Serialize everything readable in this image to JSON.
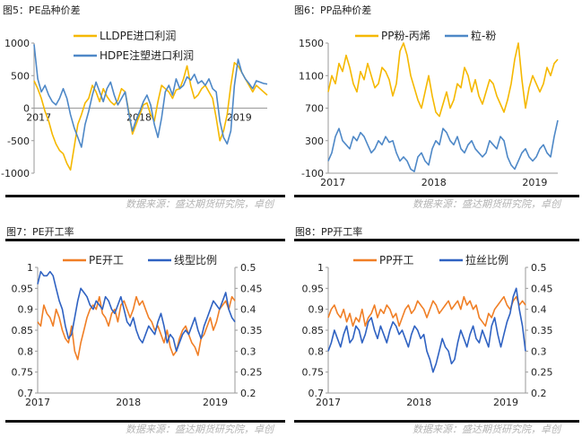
{
  "panels": {
    "p5": {
      "title": "图5：PE品种价差",
      "source": "数据来源：盛达期货研究院，卓创"
    },
    "p6": {
      "title": "图6：PP品种价差",
      "source": "数据来源：盛达期货研究院，卓创"
    },
    "p7": {
      "title": "图7：PE开工率",
      "source": "数据来源：盛达期货研究院，卓创"
    },
    "p8": {
      "title": "图8：PP开工率",
      "source": "数据来源：盛达期货研究院，卓创"
    }
  },
  "colors": {
    "orange": "#F5B800",
    "blue": "#4E88C7",
    "orange2": "#F07F26",
    "blue2": "#2F62C2"
  },
  "chart_data": [
    {
      "id": "p5",
      "type": "line",
      "yticks": [
        "1000",
        "500",
        "0",
        "-500",
        "-1000"
      ],
      "ylim": [
        -1000,
        1000
      ],
      "xticks": [
        "2017",
        "2018",
        "2019"
      ],
      "series": [
        {
          "name": "LLDPE进口利润",
          "color": "#F5B800",
          "values": [
            420,
            300,
            150,
            -50,
            -200,
            -400,
            -550,
            -650,
            -700,
            -850,
            -950,
            -600,
            -250,
            -100,
            80,
            150,
            350,
            250,
            100,
            300,
            180,
            100,
            50,
            120,
            300,
            250,
            -50,
            -400,
            -250,
            -100,
            50,
            80,
            -100,
            -200,
            100,
            350,
            300,
            250,
            150,
            280,
            300,
            450,
            650,
            350,
            150,
            200,
            300,
            350,
            250,
            150,
            -150,
            -500,
            -350,
            -100,
            350,
            700,
            650,
            550,
            450,
            350,
            250,
            350,
            300,
            250,
            200
          ]
        },
        {
          "name": "HDPE注塑进口利润",
          "color": "#4E88C7",
          "values": [
            980,
            450,
            250,
            350,
            200,
            100,
            50,
            150,
            300,
            150,
            -100,
            -300,
            -450,
            -600,
            -250,
            -50,
            200,
            400,
            250,
            100,
            300,
            400,
            200,
            50,
            150,
            250,
            -80,
            -350,
            -180,
            -50,
            100,
            200,
            50,
            -250,
            -450,
            -150,
            250,
            350,
            200,
            450,
            300,
            350,
            480,
            430,
            520,
            380,
            420,
            350,
            450,
            300,
            250,
            -200,
            -450,
            -550,
            -350,
            350,
            750,
            550,
            450,
            380,
            300,
            420,
            400,
            380,
            370
          ]
        }
      ]
    },
    {
      "id": "p6",
      "type": "line",
      "yticks": [
        "1500",
        "1100",
        "700",
        "300",
        "-100"
      ],
      "ylim": [
        -100,
        1500
      ],
      "xticks": [
        "2017",
        "2018",
        "2019"
      ],
      "series": [
        {
          "name": "PP粉-丙烯",
          "color": "#F5B800",
          "values": [
            900,
            1100,
            1000,
            1250,
            1150,
            1350,
            1200,
            1000,
            900,
            1150,
            1050,
            1250,
            1100,
            950,
            1000,
            1200,
            1150,
            1050,
            850,
            1000,
            1400,
            1500,
            1350,
            1100,
            950,
            800,
            700,
            900,
            1100,
            850,
            650,
            600,
            750,
            900,
            700,
            800,
            1000,
            950,
            1200,
            1100,
            900,
            1050,
            850,
            750,
            900,
            1050,
            1000,
            850,
            750,
            650,
            800,
            1000,
            1300,
            1500,
            1050,
            700,
            950,
            1100,
            1000,
            900,
            1000,
            1200,
            1100,
            1250,
            1300
          ]
        },
        {
          "name": "粒-粉",
          "color": "#4E88C7",
          "values": [
            50,
            150,
            350,
            450,
            300,
            250,
            200,
            350,
            300,
            400,
            350,
            250,
            150,
            200,
            300,
            250,
            350,
            280,
            300,
            150,
            50,
            100,
            50,
            -50,
            -80,
            100,
            150,
            50,
            0,
            200,
            300,
            250,
            450,
            400,
            300,
            250,
            350,
            200,
            150,
            250,
            300,
            200,
            150,
            100,
            150,
            300,
            250,
            200,
            350,
            300,
            100,
            0,
            -50,
            50,
            150,
            200,
            100,
            50,
            100,
            200,
            250,
            150,
            100,
            350,
            550
          ]
        }
      ]
    },
    {
      "id": "p7",
      "type": "line",
      "yticks_left": [
        "1",
        "0.95",
        "0.9",
        "0.85",
        "0.8",
        "0.75",
        "0.7"
      ],
      "ylim_left": [
        0.7,
        1.0
      ],
      "yticks_right": [
        "0.5",
        "0.45",
        "0.4",
        "0.35",
        "0.3",
        "0.25",
        "0.2"
      ],
      "ylim_right": [
        0.2,
        0.5
      ],
      "xticks": [
        "2017",
        "2018",
        "2019"
      ],
      "series": [
        {
          "name": "PE开工",
          "color": "#F07F26",
          "axis": "left",
          "values": [
            0.87,
            0.86,
            0.91,
            0.89,
            0.88,
            0.86,
            0.9,
            0.88,
            0.85,
            0.83,
            0.82,
            0.86,
            0.8,
            0.78,
            0.82,
            0.85,
            0.88,
            0.9,
            0.91,
            0.9,
            0.93,
            0.89,
            0.88,
            0.86,
            0.89,
            0.9,
            0.87,
            0.91,
            0.92,
            0.9,
            0.88,
            0.9,
            0.93,
            0.91,
            0.92,
            0.9,
            0.88,
            0.87,
            0.85,
            0.86,
            0.84,
            0.82,
            0.85,
            0.81,
            0.79,
            0.8,
            0.83,
            0.85,
            0.86,
            0.84,
            0.82,
            0.81,
            0.79,
            0.83,
            0.84,
            0.86,
            0.88,
            0.85,
            0.87,
            0.9,
            0.91,
            0.92,
            0.9,
            0.93,
            0.92
          ]
        },
        {
          "name": "线型比例",
          "color": "#2F62C2",
          "axis": "right",
          "values": [
            0.46,
            0.49,
            0.48,
            0.48,
            0.49,
            0.48,
            0.45,
            0.42,
            0.4,
            0.36,
            0.33,
            0.34,
            0.38,
            0.42,
            0.45,
            0.44,
            0.43,
            0.41,
            0.4,
            0.42,
            0.41,
            0.4,
            0.43,
            0.42,
            0.4,
            0.39,
            0.41,
            0.43,
            0.4,
            0.37,
            0.36,
            0.38,
            0.35,
            0.33,
            0.32,
            0.34,
            0.36,
            0.35,
            0.34,
            0.37,
            0.39,
            0.36,
            0.32,
            0.34,
            0.33,
            0.3,
            0.32,
            0.34,
            0.35,
            0.34,
            0.36,
            0.38,
            0.35,
            0.33,
            0.36,
            0.38,
            0.4,
            0.42,
            0.41,
            0.4,
            0.42,
            0.44,
            0.4,
            0.38,
            0.37
          ]
        }
      ]
    },
    {
      "id": "p8",
      "type": "line",
      "yticks_left": [
        "1",
        "0.95",
        "0.9",
        "0.85",
        "0.8",
        "0.75",
        "0.7"
      ],
      "ylim_left": [
        0.7,
        1.0
      ],
      "yticks_right": [
        "0.5",
        "0.45",
        "0.4",
        "0.35",
        "0.3",
        "0.25",
        "0.2"
      ],
      "ylim_right": [
        0.2,
        0.5
      ],
      "xticks": [
        "2017",
        "2018",
        "2019"
      ],
      "series": [
        {
          "name": "PP开工",
          "color": "#F07F26",
          "axis": "left",
          "values": [
            0.88,
            0.9,
            0.91,
            0.89,
            0.88,
            0.9,
            0.87,
            0.89,
            0.86,
            0.88,
            0.87,
            0.9,
            0.86,
            0.88,
            0.89,
            0.91,
            0.88,
            0.9,
            0.89,
            0.91,
            0.9,
            0.88,
            0.89,
            0.86,
            0.88,
            0.9,
            0.91,
            0.89,
            0.9,
            0.92,
            0.91,
            0.9,
            0.88,
            0.9,
            0.92,
            0.91,
            0.89,
            0.9,
            0.91,
            0.92,
            0.9,
            0.91,
            0.92,
            0.9,
            0.93,
            0.91,
            0.92,
            0.9,
            0.91,
            0.88,
            0.87,
            0.86,
            0.89,
            0.88,
            0.9,
            0.91,
            0.92,
            0.93,
            0.91,
            0.9,
            0.92,
            0.93,
            0.91,
            0.92,
            0.91
          ]
        },
        {
          "name": "拉丝比例",
          "color": "#2F62C2",
          "axis": "right",
          "values": [
            0.3,
            0.32,
            0.35,
            0.33,
            0.31,
            0.34,
            0.36,
            0.32,
            0.33,
            0.36,
            0.35,
            0.32,
            0.34,
            0.37,
            0.38,
            0.35,
            0.33,
            0.36,
            0.34,
            0.32,
            0.35,
            0.37,
            0.36,
            0.34,
            0.35,
            0.33,
            0.31,
            0.34,
            0.36,
            0.35,
            0.33,
            0.34,
            0.3,
            0.28,
            0.25,
            0.27,
            0.3,
            0.33,
            0.31,
            0.3,
            0.27,
            0.28,
            0.32,
            0.35,
            0.33,
            0.31,
            0.34,
            0.36,
            0.33,
            0.32,
            0.35,
            0.33,
            0.31,
            0.36,
            0.38,
            0.34,
            0.31,
            0.34,
            0.37,
            0.39,
            0.43,
            0.45,
            0.4,
            0.36,
            0.3
          ]
        }
      ]
    }
  ]
}
